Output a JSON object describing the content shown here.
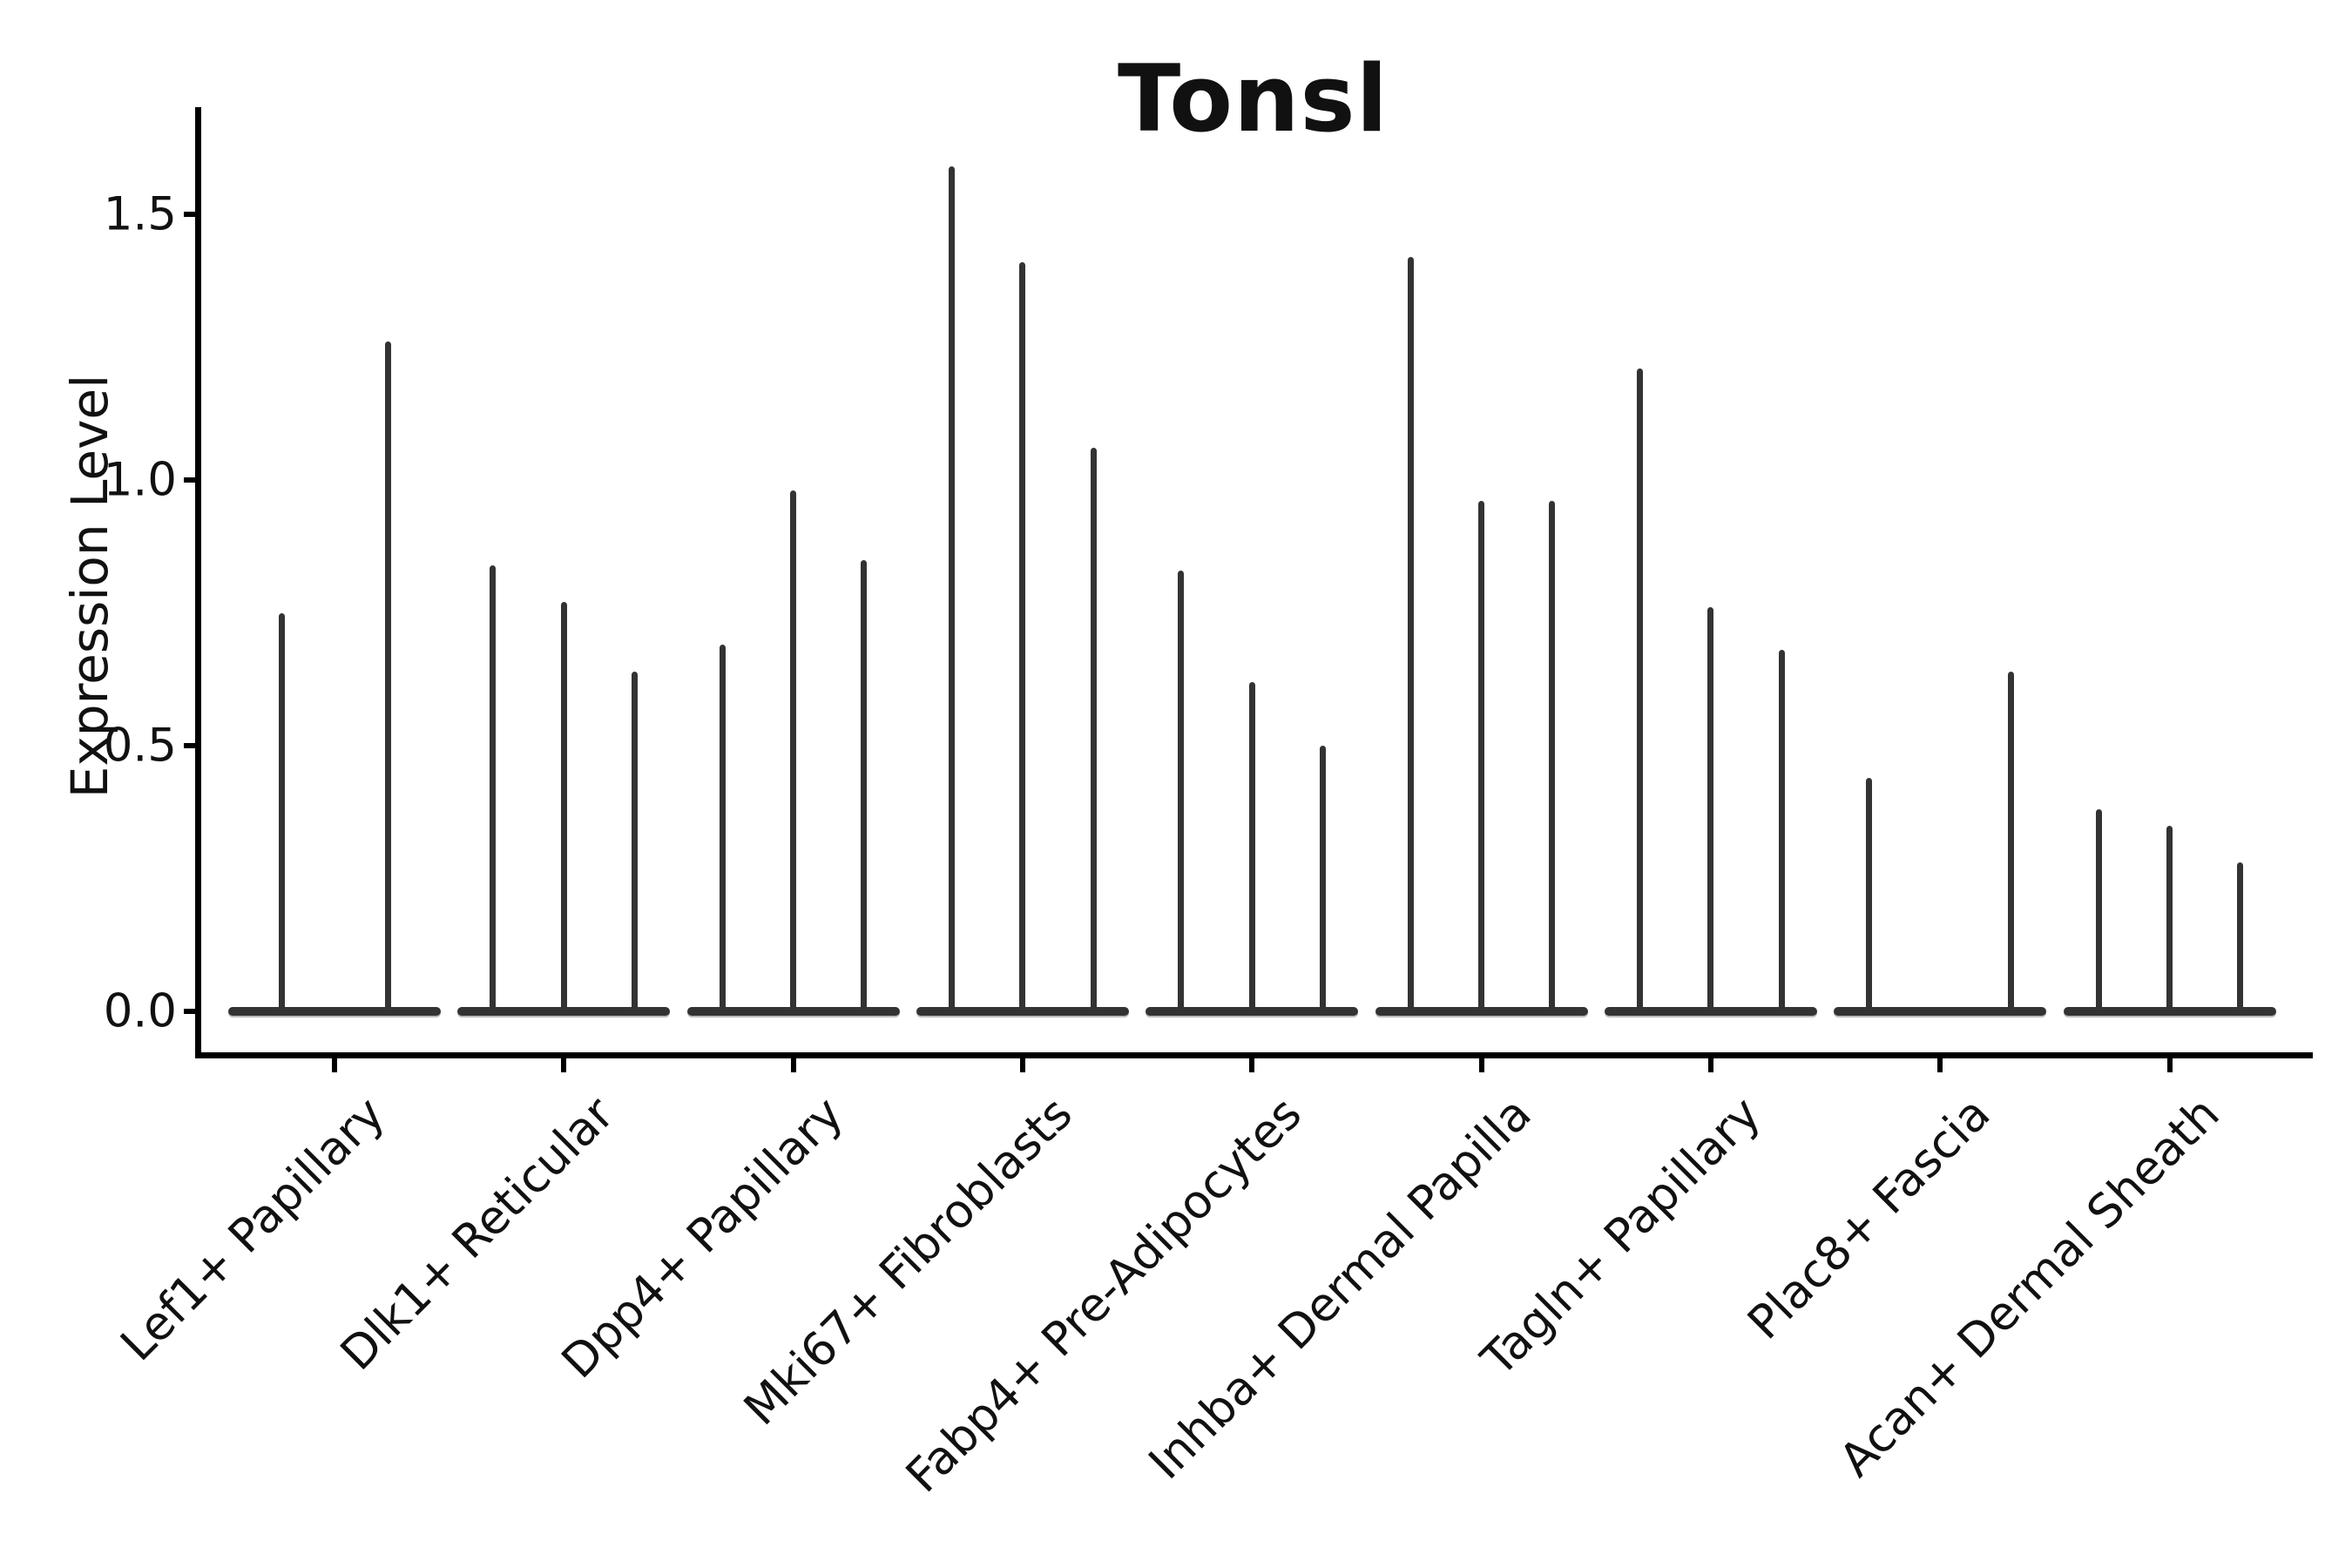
{
  "figure": {
    "title": "Tonsl",
    "y_axis_label": "Expression Level"
  },
  "chart_data": {
    "type": "violin",
    "title": "Tonsl",
    "xlabel": "",
    "ylabel": "Expression Level",
    "yticks": [
      0.0,
      0.5,
      1.0,
      1.5
    ],
    "ylim": [
      -0.08,
      1.7
    ],
    "grid": false,
    "legend": "none",
    "style": "seurat-vlnplot, thin density spikes rising from flat bases at 0, split violins per category",
    "categories": [
      "Lef1+ Papillary",
      "Dlk1+ Reticular",
      "Dpp4+ Papillary",
      "Mki67+ Fibroblasts",
      "Fabp4+ Pre-Adipocytes",
      "Inhba+ Dermal Papilla",
      "Tagln+ Papillary",
      "Plac8+ Fascia",
      "Acan+ Dermal Sheath"
    ],
    "groups": [
      {
        "category": "Lef1+ Papillary",
        "violin_max_expression": [
          0.75,
          1.26
        ]
      },
      {
        "category": "Dlk1+ Reticular",
        "violin_max_expression": [
          0.84,
          0.77,
          0.64
        ]
      },
      {
        "category": "Dpp4+ Papillary",
        "violin_max_expression": [
          0.69,
          0.98,
          0.85
        ]
      },
      {
        "category": "Mki67+ Fibroblasts",
        "violin_max_expression": [
          1.59,
          1.41,
          1.06
        ]
      },
      {
        "category": "Fabp4+ Pre-Adipocytes",
        "violin_max_expression": [
          0.83,
          0.62,
          0.5
        ]
      },
      {
        "category": "Inhba+ Dermal Papilla",
        "violin_max_expression": [
          1.42,
          0.96,
          0.96
        ]
      },
      {
        "category": "Tagln+ Papillary",
        "violin_max_expression": [
          1.21,
          0.76,
          0.68
        ]
      },
      {
        "category": "Plac8+ Fascia",
        "violin_max_expression": [
          0.44,
          0.0,
          0.64
        ]
      },
      {
        "category": "Acan+ Dermal Sheath",
        "violin_max_expression": [
          0.38,
          0.35,
          0.28
        ]
      }
    ]
  }
}
